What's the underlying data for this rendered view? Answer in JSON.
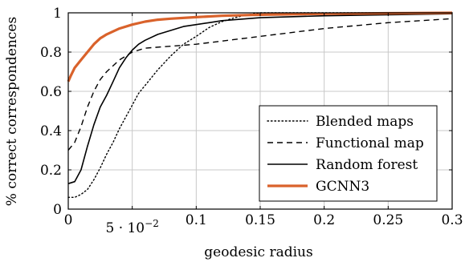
{
  "chart_data": {
    "type": "line",
    "title": "",
    "xlabel": "geodesic radius",
    "ylabel": "% correct correspondences",
    "xlim": [
      0,
      0.3
    ],
    "ylim": [
      0,
      1
    ],
    "grid": true,
    "legend_position": "bottom-right",
    "x_ticks": [
      {
        "value": 0,
        "label": "0"
      },
      {
        "value": 0.05,
        "label": "5 · 10−2"
      },
      {
        "value": 0.1,
        "label": "0.1"
      },
      {
        "value": 0.15,
        "label": "0.15"
      },
      {
        "value": 0.2,
        "label": "0.2"
      },
      {
        "value": 0.25,
        "label": "0.25"
      },
      {
        "value": 0.3,
        "label": "0.3"
      }
    ],
    "y_ticks": [
      {
        "value": 0,
        "label": "0"
      },
      {
        "value": 0.2,
        "label": "0.2"
      },
      {
        "value": 0.4,
        "label": "0.4"
      },
      {
        "value": 0.6,
        "label": "0.6"
      },
      {
        "value": 0.8,
        "label": "0.8"
      },
      {
        "value": 1,
        "label": "1"
      }
    ],
    "series": [
      {
        "name": "Blended maps",
        "style": "dotted",
        "color": "#000000",
        "points": [
          [
            0,
            0.06
          ],
          [
            0.005,
            0.06
          ],
          [
            0.01,
            0.075
          ],
          [
            0.015,
            0.1
          ],
          [
            0.02,
            0.15
          ],
          [
            0.025,
            0.21
          ],
          [
            0.03,
            0.28
          ],
          [
            0.035,
            0.34
          ],
          [
            0.04,
            0.41
          ],
          [
            0.045,
            0.47
          ],
          [
            0.05,
            0.53
          ],
          [
            0.055,
            0.59
          ],
          [
            0.06,
            0.63
          ],
          [
            0.07,
            0.71
          ],
          [
            0.08,
            0.78
          ],
          [
            0.09,
            0.84
          ],
          [
            0.1,
            0.88
          ],
          [
            0.11,
            0.925
          ],
          [
            0.12,
            0.955
          ],
          [
            0.13,
            0.975
          ],
          [
            0.14,
            0.99
          ],
          [
            0.15,
            1
          ],
          [
            0.2,
            1
          ],
          [
            0.25,
            1
          ],
          [
            0.3,
            1
          ]
        ]
      },
      {
        "name": "Functional map",
        "style": "dashed",
        "color": "#000000",
        "points": [
          [
            0,
            0.3
          ],
          [
            0.005,
            0.34
          ],
          [
            0.01,
            0.42
          ],
          [
            0.015,
            0.52
          ],
          [
            0.02,
            0.6
          ],
          [
            0.025,
            0.66
          ],
          [
            0.03,
            0.7
          ],
          [
            0.04,
            0.76
          ],
          [
            0.05,
            0.8
          ],
          [
            0.06,
            0.82
          ],
          [
            0.08,
            0.83
          ],
          [
            0.1,
            0.84
          ],
          [
            0.15,
            0.88
          ],
          [
            0.2,
            0.92
          ],
          [
            0.25,
            0.95
          ],
          [
            0.3,
            0.97
          ]
        ]
      },
      {
        "name": "Random forest",
        "style": "solid",
        "color": "#000000",
        "points": [
          [
            0,
            0.13
          ],
          [
            0.005,
            0.14
          ],
          [
            0.01,
            0.2
          ],
          [
            0.015,
            0.32
          ],
          [
            0.02,
            0.43
          ],
          [
            0.025,
            0.52
          ],
          [
            0.03,
            0.58
          ],
          [
            0.035,
            0.65
          ],
          [
            0.04,
            0.72
          ],
          [
            0.045,
            0.77
          ],
          [
            0.05,
            0.81
          ],
          [
            0.055,
            0.84
          ],
          [
            0.06,
            0.86
          ],
          [
            0.07,
            0.89
          ],
          [
            0.08,
            0.91
          ],
          [
            0.09,
            0.93
          ],
          [
            0.1,
            0.94
          ],
          [
            0.11,
            0.95
          ],
          [
            0.12,
            0.96
          ],
          [
            0.15,
            0.975
          ],
          [
            0.2,
            0.985
          ],
          [
            0.25,
            0.99
          ],
          [
            0.3,
            0.995
          ]
        ]
      },
      {
        "name": "GCNN3",
        "style": "thick",
        "color": "#d9622b",
        "points": [
          [
            0,
            0.65
          ],
          [
            0.002,
            0.68
          ],
          [
            0.005,
            0.72
          ],
          [
            0.01,
            0.76
          ],
          [
            0.015,
            0.8
          ],
          [
            0.02,
            0.84
          ],
          [
            0.025,
            0.87
          ],
          [
            0.03,
            0.89
          ],
          [
            0.04,
            0.92
          ],
          [
            0.05,
            0.94
          ],
          [
            0.06,
            0.955
          ],
          [
            0.07,
            0.965
          ],
          [
            0.08,
            0.97
          ],
          [
            0.1,
            0.978
          ],
          [
            0.12,
            0.985
          ],
          [
            0.15,
            0.99
          ],
          [
            0.2,
            0.995
          ],
          [
            0.25,
            0.998
          ],
          [
            0.3,
            1
          ]
        ]
      }
    ]
  }
}
